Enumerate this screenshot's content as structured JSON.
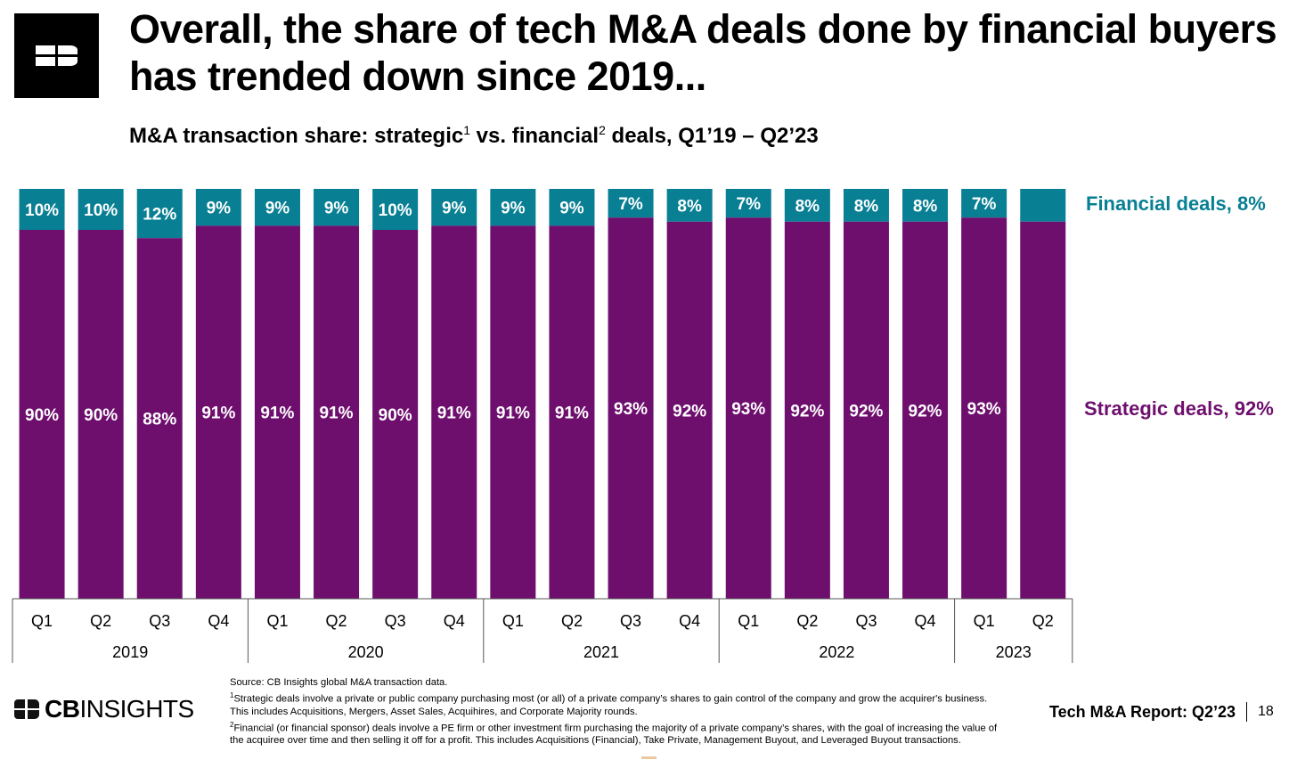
{
  "header": {
    "title": "Overall, the share of tech M&A deals done by financial buyers has trended down since 2019...",
    "subtitle": {
      "part1": "M&A transaction share: strategic",
      "sup1": "1",
      "part2": " vs. financial",
      "sup2": "2",
      "part3": " deals, Q1’19 – Q2’23"
    }
  },
  "chart_data": {
    "type": "bar",
    "stacked": true,
    "normalized_percent": true,
    "ylim": [
      0,
      100
    ],
    "grid": false,
    "categories": [
      "Q1",
      "Q2",
      "Q3",
      "Q4",
      "Q1",
      "Q2",
      "Q3",
      "Q4",
      "Q1",
      "Q2",
      "Q3",
      "Q4",
      "Q1",
      "Q2",
      "Q3",
      "Q4",
      "Q1",
      "Q2"
    ],
    "groups": [
      {
        "label": "2019",
        "count": 4
      },
      {
        "label": "2020",
        "count": 4
      },
      {
        "label": "2021",
        "count": 4
      },
      {
        "label": "2022",
        "count": 4
      },
      {
        "label": "2023",
        "count": 2
      }
    ],
    "series": [
      {
        "name": "Strategic deals",
        "color": "#6e0f6e",
        "values": [
          90,
          90,
          88,
          91,
          91,
          91,
          90,
          91,
          91,
          91,
          93,
          92,
          93,
          92,
          92,
          92,
          93,
          92
        ],
        "labels": [
          "90%",
          "90%",
          "88%",
          "91%",
          "91%",
          "91%",
          "90%",
          "91%",
          "91%",
          "91%",
          "93%",
          "92%",
          "93%",
          "92%",
          "92%",
          "92%",
          "93%",
          ""
        ]
      },
      {
        "name": "Financial deals",
        "color": "#087f93",
        "values": [
          10,
          10,
          12,
          9,
          9,
          9,
          10,
          9,
          9,
          9,
          7,
          8,
          7,
          8,
          8,
          8,
          7,
          8
        ],
        "labels": [
          "10%",
          "10%",
          "12%",
          "9%",
          "9%",
          "9%",
          "10%",
          "9%",
          "9%",
          "9%",
          "7%",
          "8%",
          "7%",
          "8%",
          "8%",
          "8%",
          "7%",
          ""
        ]
      }
    ],
    "series_end_labels": {
      "financial": "Financial deals, 8%",
      "strategic": "Strategic deals, 92%"
    }
  },
  "footnotes": {
    "source": "Source: CB Insights global M&A transaction data.",
    "note1_marker": "1",
    "note1": "Strategic deals involve a private or public company purchasing most (or all) of a private company’s shares to gain control of the company and grow the acquirer's business. This includes Acquisitions, Mergers, Asset Sales, Acquihires, and Corporate Majority rounds.",
    "note2_marker": "2",
    "note2": "Financial (or financial sponsor) deals involve a PE firm or other investment firm purchasing the majority of a private company’s shares, with the goal of increasing the value of the acquiree over time and then selling it off for a profit. This includes Acquisitions (Financial), Take Private, Management Buyout, and Leveraged Buyout transactions."
  },
  "footer": {
    "brand_bold": "CB",
    "brand_rest": "INSIGHTS",
    "report_title": "Tech M&A Report: Q2’23",
    "page_number": "18"
  },
  "icons": {
    "logo": "cb-insights-logo-icon"
  }
}
